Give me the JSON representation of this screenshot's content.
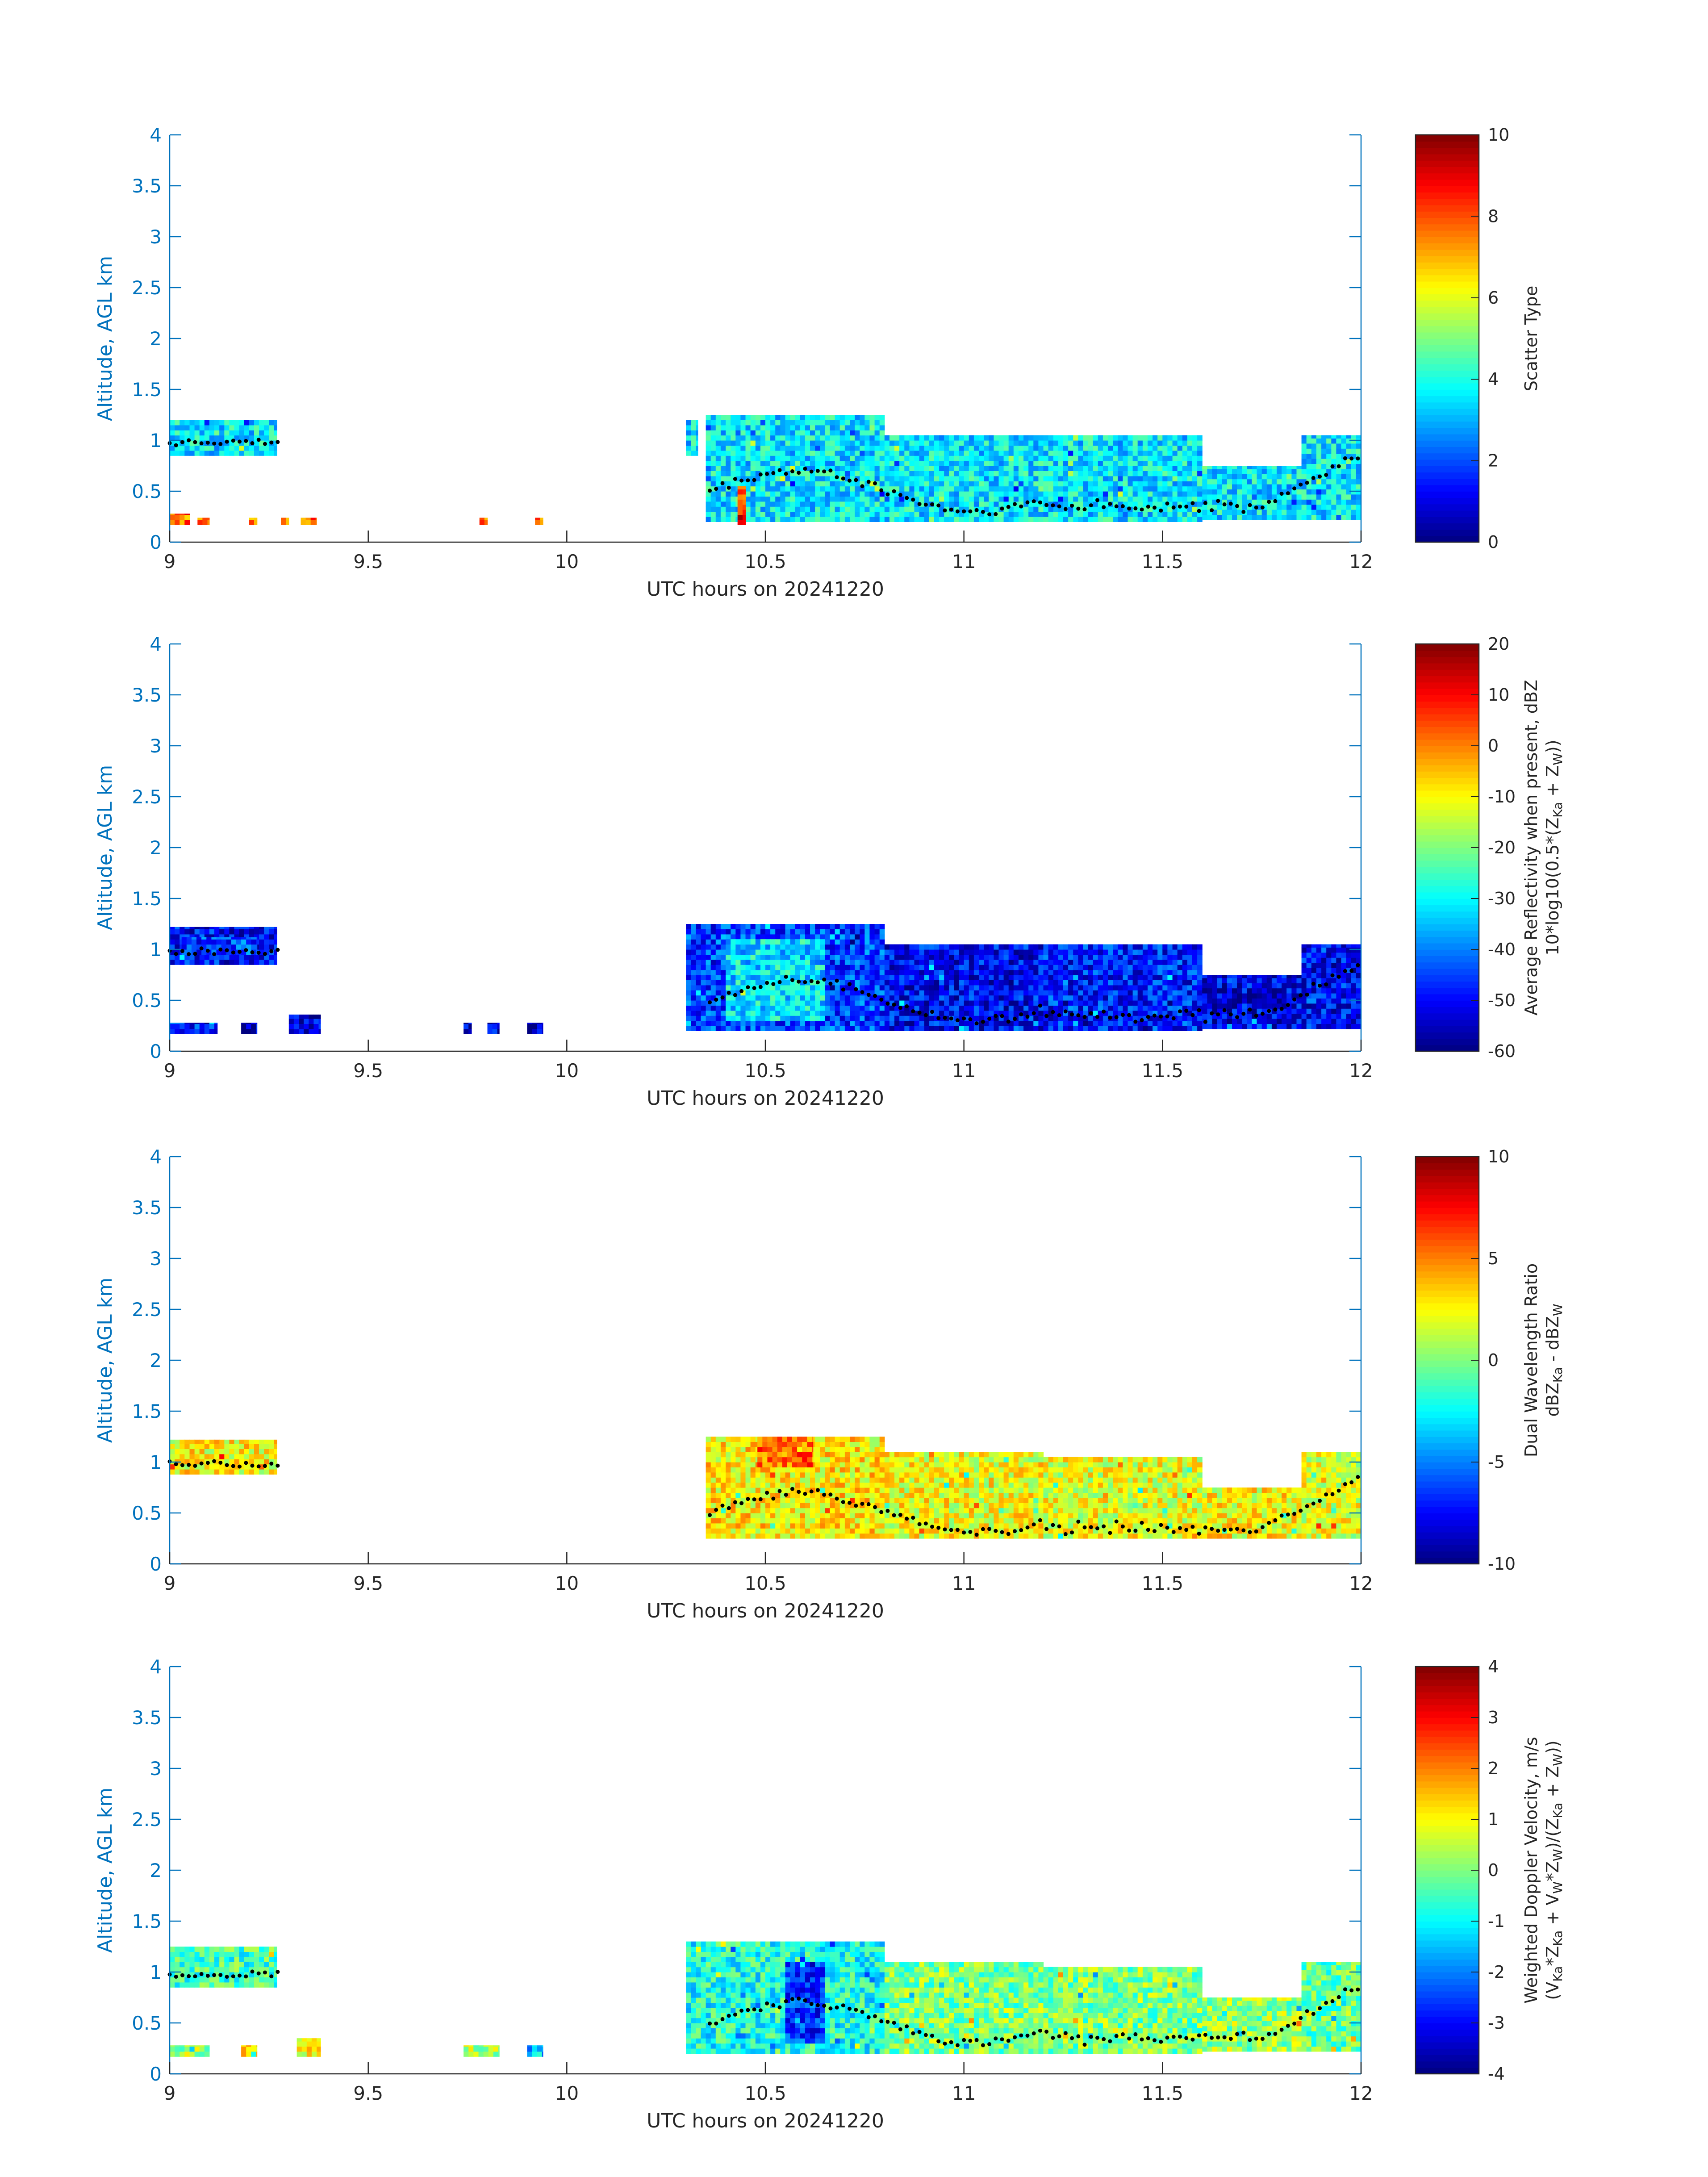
{
  "chart_data": [
    {
      "type": "heatmap",
      "xlabel": "UTC hours on 20241220",
      "ylabel": "Altitude, AGL km",
      "xlim": [
        9,
        12
      ],
      "ylim": [
        0,
        4
      ],
      "xticks": [
        "9",
        "9.5",
        "10",
        "10.5",
        "11",
        "11.5",
        "12"
      ],
      "yticks": [
        "0",
        "0.5",
        "1",
        "1.5",
        "2",
        "2.5",
        "3",
        "3.5",
        "4"
      ],
      "colorbar": {
        "label_lines": [
          "Scatter Type"
        ],
        "range": [
          0,
          10
        ],
        "ticks": [
          "0",
          "2",
          "4",
          "6",
          "8",
          "10"
        ],
        "colormap": "jet"
      },
      "field": "scatter_type",
      "segments": [
        {
          "x0": 9.0,
          "x1": 9.27,
          "base": 0.85,
          "top": 1.2,
          "value": 3.6
        },
        {
          "x0": 9.0,
          "x1": 9.05,
          "base": 0.17,
          "top": 0.28,
          "value": 7.8
        },
        {
          "x0": 9.07,
          "x1": 9.1,
          "base": 0.17,
          "top": 0.24,
          "value": 7.8
        },
        {
          "x0": 9.2,
          "x1": 9.22,
          "base": 0.17,
          "top": 0.24,
          "value": 7.8
        },
        {
          "x0": 9.28,
          "x1": 9.3,
          "base": 0.17,
          "top": 0.24,
          "value": 7.8
        },
        {
          "x0": 9.33,
          "x1": 9.37,
          "base": 0.17,
          "top": 0.24,
          "value": 7.8
        },
        {
          "x0": 9.78,
          "x1": 9.8,
          "base": 0.17,
          "top": 0.24,
          "value": 7.8
        },
        {
          "x0": 9.92,
          "x1": 9.94,
          "base": 0.17,
          "top": 0.24,
          "value": 7.8
        },
        {
          "x0": 10.3,
          "x1": 10.33,
          "base": 0.85,
          "top": 1.2,
          "value": 3.6
        },
        {
          "x0": 10.35,
          "x1": 10.8,
          "base": 0.2,
          "top": 1.25,
          "value": 3.6
        },
        {
          "x0": 10.43,
          "x1": 10.45,
          "base": 0.17,
          "top": 0.55,
          "value": 7.8
        },
        {
          "x0": 10.8,
          "x1": 11.2,
          "base": 0.2,
          "top": 1.05,
          "value": 3.6
        },
        {
          "x0": 11.2,
          "x1": 11.6,
          "base": 0.2,
          "top": 1.05,
          "value": 3.6
        },
        {
          "x0": 11.6,
          "x1": 11.85,
          "base": 0.22,
          "top": 0.75,
          "value": 3.6
        },
        {
          "x0": 11.85,
          "x1": 12.0,
          "base": 0.22,
          "top": 1.05,
          "value": 3.6
        }
      ]
    },
    {
      "type": "heatmap",
      "xlabel": "UTC hours on 20241220",
      "ylabel": "Altitude, AGL km",
      "xlim": [
        9,
        12
      ],
      "ylim": [
        0,
        4
      ],
      "xticks": [
        "9",
        "9.5",
        "10",
        "10.5",
        "11",
        "11.5",
        "12"
      ],
      "yticks": [
        "0",
        "0.5",
        "1",
        "1.5",
        "2",
        "2.5",
        "3",
        "3.5",
        "4"
      ],
      "colorbar": {
        "label_lines": [
          "Average Reflectivity when present, dBZ",
          "10*log10(0.5*(Z",
          "Ka",
          " + Z",
          "W",
          "))"
        ],
        "range": [
          -60,
          20
        ],
        "ticks": [
          "-60",
          "-50",
          "-40",
          "-30",
          "-20",
          "-10",
          "0",
          "10",
          "20"
        ],
        "colormap": "jet"
      },
      "field": "reflectivity_dbz",
      "segments": [
        {
          "x0": 9.0,
          "x1": 9.27,
          "base": 0.85,
          "top": 1.22,
          "value": -50
        },
        {
          "x0": 9.03,
          "x1": 9.22,
          "base": 0.95,
          "top": 1.12,
          "value": -45
        },
        {
          "x0": 9.0,
          "x1": 9.12,
          "base": 0.17,
          "top": 0.28,
          "value": -48
        },
        {
          "x0": 9.18,
          "x1": 9.22,
          "base": 0.17,
          "top": 0.28,
          "value": -55
        },
        {
          "x0": 9.3,
          "x1": 9.38,
          "base": 0.17,
          "top": 0.36,
          "value": -52
        },
        {
          "x0": 9.74,
          "x1": 9.76,
          "base": 0.17,
          "top": 0.28,
          "value": -55
        },
        {
          "x0": 9.8,
          "x1": 9.83,
          "base": 0.17,
          "top": 0.28,
          "value": -52
        },
        {
          "x0": 9.9,
          "x1": 9.94,
          "base": 0.17,
          "top": 0.28,
          "value": -55
        },
        {
          "x0": 10.3,
          "x1": 10.8,
          "base": 0.2,
          "top": 1.25,
          "value": -45
        },
        {
          "x0": 10.4,
          "x1": 10.65,
          "base": 0.3,
          "top": 1.1,
          "value": -32
        },
        {
          "x0": 10.8,
          "x1": 11.2,
          "base": 0.2,
          "top": 1.05,
          "value": -50
        },
        {
          "x0": 11.2,
          "x1": 11.6,
          "base": 0.2,
          "top": 1.05,
          "value": -48
        },
        {
          "x0": 11.6,
          "x1": 11.85,
          "base": 0.22,
          "top": 0.75,
          "value": -52
        },
        {
          "x0": 11.85,
          "x1": 12.0,
          "base": 0.22,
          "top": 1.05,
          "value": -50
        }
      ]
    },
    {
      "type": "heatmap",
      "xlabel": "UTC hours on 20241220",
      "ylabel": "Altitude, AGL km",
      "xlim": [
        9,
        12
      ],
      "ylim": [
        0,
        4
      ],
      "xticks": [
        "9",
        "9.5",
        "10",
        "10.5",
        "11",
        "11.5",
        "12"
      ],
      "yticks": [
        "0",
        "0.5",
        "1",
        "1.5",
        "2",
        "2.5",
        "3",
        "3.5",
        "4"
      ],
      "colorbar": {
        "label_lines": [
          "Dual Wavelength Ratio",
          "dBZ",
          "Ka",
          " - dBZ",
          "W"
        ],
        "range": [
          -10,
          10
        ],
        "ticks": [
          "-10",
          "-5",
          "0",
          "5",
          "10"
        ],
        "colormap": "jet"
      },
      "field": "dual_wavelength_ratio_db",
      "segments": [
        {
          "x0": 9.0,
          "x1": 9.27,
          "base": 0.88,
          "top": 1.22,
          "value": 2.5
        },
        {
          "x0": 10.35,
          "x1": 10.8,
          "base": 0.25,
          "top": 1.25,
          "value": 2.8
        },
        {
          "x0": 10.48,
          "x1": 10.62,
          "base": 0.95,
          "top": 1.25,
          "value": 5.5
        },
        {
          "x0": 10.8,
          "x1": 11.2,
          "base": 0.25,
          "top": 1.1,
          "value": 2.2
        },
        {
          "x0": 11.2,
          "x1": 11.6,
          "base": 0.25,
          "top": 1.05,
          "value": 2.0
        },
        {
          "x0": 11.6,
          "x1": 11.85,
          "base": 0.25,
          "top": 0.75,
          "value": 2.4
        },
        {
          "x0": 11.85,
          "x1": 12.0,
          "base": 0.25,
          "top": 1.1,
          "value": 2.0
        }
      ]
    },
    {
      "type": "heatmap",
      "xlabel": "UTC hours on 20241220",
      "ylabel": "Altitude, AGL km",
      "xlim": [
        9,
        12
      ],
      "ylim": [
        0,
        4
      ],
      "xticks": [
        "9",
        "9.5",
        "10",
        "10.5",
        "11",
        "11.5",
        "12"
      ],
      "yticks": [
        "0",
        "0.5",
        "1",
        "1.5",
        "2",
        "2.5",
        "3",
        "3.5",
        "4"
      ],
      "colorbar": {
        "label_lines": [
          "Weighted Doppler Velocity, m/s",
          "(V",
          "Ka",
          "*Z",
          "Ka",
          " + V",
          "W",
          "*Z",
          "W",
          ")/(Z",
          "Ka",
          " + Z",
          "W",
          "))"
        ],
        "range": [
          -4,
          4
        ],
        "ticks": [
          "-4",
          "-3",
          "-2",
          "-1",
          "0",
          "1",
          "2",
          "3",
          "4"
        ],
        "colormap": "jet"
      },
      "field": "doppler_velocity_ms",
      "segments": [
        {
          "x0": 9.0,
          "x1": 9.27,
          "base": 0.85,
          "top": 1.25,
          "value": -0.5
        },
        {
          "x0": 9.0,
          "x1": 9.1,
          "base": 0.17,
          "top": 0.28,
          "value": 0.3
        },
        {
          "x0": 9.18,
          "x1": 9.22,
          "base": 0.17,
          "top": 0.28,
          "value": 1.0
        },
        {
          "x0": 9.32,
          "x1": 9.38,
          "base": 0.17,
          "top": 0.35,
          "value": 1.0
        },
        {
          "x0": 9.74,
          "x1": 9.83,
          "base": 0.17,
          "top": 0.28,
          "value": 0.3
        },
        {
          "x0": 9.9,
          "x1": 9.94,
          "base": 0.17,
          "top": 0.28,
          "value": -1.5
        },
        {
          "x0": 10.3,
          "x1": 10.8,
          "base": 0.2,
          "top": 1.3,
          "value": -0.8
        },
        {
          "x0": 10.55,
          "x1": 10.65,
          "base": 0.3,
          "top": 1.1,
          "value": -2.6
        },
        {
          "x0": 10.8,
          "x1": 11.2,
          "base": 0.2,
          "top": 1.1,
          "value": 0.0
        },
        {
          "x0": 11.2,
          "x1": 11.6,
          "base": 0.2,
          "top": 1.05,
          "value": 0.0
        },
        {
          "x0": 11.6,
          "x1": 11.85,
          "base": 0.22,
          "top": 0.75,
          "value": 0.2
        },
        {
          "x0": 11.85,
          "x1": 12.0,
          "base": 0.22,
          "top": 1.1,
          "value": -0.2
        }
      ]
    }
  ]
}
